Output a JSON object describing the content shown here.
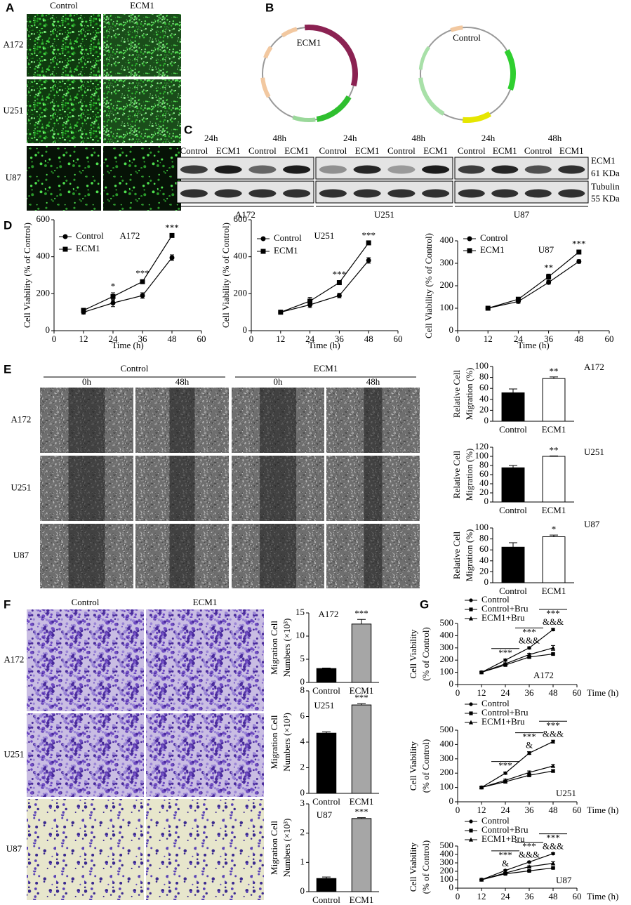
{
  "panel_a": {
    "label": "A",
    "columns": [
      "Control",
      "ECM1"
    ],
    "rows": [
      "A172",
      "U251",
      "U87"
    ]
  },
  "panel_b": {
    "label": "B",
    "plasmids": [
      "ECM1",
      "Control"
    ]
  },
  "panel_c": {
    "label": "C",
    "blots": [
      {
        "cell_line": "A172",
        "times": [
          {
            "time": "24h",
            "lanes": [
              "Control",
              "ECM1"
            ]
          },
          {
            "time": "48h",
            "lanes": [
              "Control",
              "ECM1"
            ]
          }
        ]
      },
      {
        "cell_line": "U251",
        "times": [
          {
            "time": "24h",
            "lanes": [
              "Control",
              "ECM1"
            ]
          },
          {
            "time": "48h",
            "lanes": [
              "Control",
              "ECM1"
            ]
          }
        ]
      },
      {
        "cell_line": "U87",
        "times": [
          {
            "time": "24h",
            "lanes": [
              "Control",
              "ECM1"
            ]
          },
          {
            "time": "48h",
            "lanes": [
              "Control",
              "ECM1"
            ]
          }
        ]
      }
    ],
    "proteins": [
      {
        "name": "ECM1",
        "size": "61 KDa"
      },
      {
        "name": "Tubulin",
        "size": "55 KDa"
      }
    ]
  },
  "panel_d": {
    "label": "D"
  },
  "panel_e": {
    "label": "E",
    "groups": [
      {
        "name": "Control",
        "times": [
          "0h",
          "48h"
        ]
      },
      {
        "name": "ECM1",
        "times": [
          "0h",
          "48h"
        ]
      }
    ],
    "rows": [
      "A172",
      "U251",
      "U87"
    ]
  },
  "panel_f": {
    "label": "F",
    "columns": [
      "Control",
      "ECM1"
    ],
    "rows": [
      "A172",
      "U251",
      "U87"
    ]
  },
  "panel_g": {
    "label": "G"
  },
  "chart_data": [
    {
      "type": "line",
      "title": "A172",
      "xlabel": "Time (h)",
      "ylabel": [
        "Cell Viability (% of Control)"
      ],
      "x": [
        12,
        24,
        36,
        48
      ],
      "xlim": [
        0,
        60
      ],
      "xticks": [
        0,
        12,
        24,
        36,
        48,
        60
      ],
      "ylim": [
        0,
        600
      ],
      "yticks": [
        0,
        200,
        400,
        600
      ],
      "series": [
        {
          "name": "Control",
          "color": "#000000",
          "marker": "circle",
          "values": [
            100,
            150,
            190,
            395
          ],
          "errors": [
            10,
            20,
            15,
            15
          ]
        },
        {
          "name": "ECM1",
          "color": "#000000",
          "marker": "square",
          "values": [
            110,
            185,
            265,
            515
          ],
          "errors": [
            8,
            20,
            10,
            8
          ]
        }
      ],
      "annotations": [
        null,
        [
          "*"
        ],
        [
          "***"
        ],
        [
          "***"
        ]
      ]
    },
    {
      "type": "line",
      "title": "U251",
      "xlabel": "Time (h)",
      "ylabel": [
        "Cell Viability (% of Control)"
      ],
      "x": [
        12,
        24,
        36,
        48
      ],
      "xlim": [
        0,
        60
      ],
      "xticks": [
        0,
        12,
        24,
        36,
        48,
        60
      ],
      "ylim": [
        0,
        600
      ],
      "yticks": [
        0,
        200,
        400,
        600
      ],
      "series": [
        {
          "name": "Control",
          "color": "#000000",
          "marker": "circle",
          "values": [
            100,
            140,
            190,
            380
          ],
          "errors": [
            8,
            15,
            12,
            15
          ]
        },
        {
          "name": "ECM1",
          "color": "#000000",
          "marker": "square",
          "values": [
            100,
            160,
            260,
            475
          ],
          "errors": [
            8,
            20,
            10,
            6
          ]
        }
      ],
      "annotations": [
        null,
        null,
        [
          "***"
        ],
        [
          "***"
        ]
      ]
    },
    {
      "type": "line",
      "title": "U87",
      "xlabel": "Time (h)",
      "ylabel": [
        "Cell Viability (% of Control)"
      ],
      "x": [
        12,
        24,
        36,
        48
      ],
      "xlim": [
        0,
        60
      ],
      "xticks": [
        0,
        12,
        24,
        36,
        48,
        60
      ],
      "ylim": [
        0,
        400
      ],
      "yticks": [
        0,
        100,
        200,
        300,
        400
      ],
      "series": [
        {
          "name": "Control",
          "color": "#000000",
          "marker": "circle",
          "values": [
            100,
            130,
            215,
            308
          ],
          "errors": [
            5,
            8,
            8,
            8
          ]
        },
        {
          "name": "ECM1",
          "color": "#000000",
          "marker": "square",
          "values": [
            100,
            140,
            240,
            350
          ],
          "errors": [
            5,
            8,
            12,
            8
          ]
        }
      ],
      "annotations": [
        null,
        null,
        [
          "**"
        ],
        [
          "***"
        ]
      ]
    },
    {
      "type": "bar",
      "title": "A172",
      "ylabel": [
        "Relative Cell",
        "Migration (%)"
      ],
      "categories": [
        "Control",
        "ECM1"
      ],
      "values": [
        52,
        78
      ],
      "errors": [
        7,
        3
      ],
      "colors": [
        "#000000",
        "#ffffff"
      ],
      "ylim": [
        0,
        100
      ],
      "yticks": [
        0,
        20,
        40,
        60,
        80,
        100
      ],
      "annotations": [
        null,
        [
          "**"
        ]
      ]
    },
    {
      "type": "bar",
      "title": "U251",
      "ylabel": [
        "Relative Cell",
        "Migration (%)"
      ],
      "categories": [
        "Control",
        "ECM1"
      ],
      "values": [
        75,
        100
      ],
      "errors": [
        5,
        1
      ],
      "colors": [
        "#000000",
        "#ffffff"
      ],
      "ylim": [
        0,
        120
      ],
      "yticks": [
        0,
        20,
        40,
        60,
        80,
        100,
        120
      ],
      "annotations": [
        null,
        [
          "**"
        ]
      ]
    },
    {
      "type": "bar",
      "title": "U87",
      "ylabel": [
        "Relative Cell",
        "Migration (%)"
      ],
      "categories": [
        "Control",
        "ECM1"
      ],
      "values": [
        65,
        84
      ],
      "errors": [
        8,
        3
      ],
      "colors": [
        "#000000",
        "#ffffff"
      ],
      "ylim": [
        0,
        100
      ],
      "yticks": [
        0,
        20,
        40,
        60,
        80,
        100
      ],
      "annotations": [
        null,
        [
          "*"
        ]
      ]
    },
    {
      "type": "bar",
      "title": "A172",
      "ylabel": [
        "Migration Cell",
        "Numbers (×10³)"
      ],
      "categories": [
        "Control",
        "ECM1"
      ],
      "values": [
        3.0,
        12.6
      ],
      "errors": [
        0.1,
        1.0
      ],
      "colors": [
        "#000000",
        "#a6a6a6"
      ],
      "ylim": [
        0,
        15
      ],
      "yticks": [
        0,
        5,
        10,
        15
      ],
      "annotations": [
        null,
        [
          "***"
        ]
      ]
    },
    {
      "type": "bar",
      "title": "U251",
      "ylabel": [
        "Migration Cell",
        "Numbers (×10³)"
      ],
      "categories": [
        "Control",
        "ECM1"
      ],
      "values": [
        4.7,
        6.9
      ],
      "errors": [
        0.1,
        0.1
      ],
      "colors": [
        "#000000",
        "#a6a6a6"
      ],
      "ylim": [
        0,
        8
      ],
      "yticks": [
        0,
        2,
        4,
        6,
        8
      ],
      "annotations": [
        null,
        [
          "***"
        ]
      ]
    },
    {
      "type": "bar",
      "title": "U87",
      "ylabel": [
        "Migration Cell",
        "Numbers (×10³)"
      ],
      "categories": [
        "Control",
        "ECM1"
      ],
      "values": [
        0.45,
        2.5
      ],
      "errors": [
        0.05,
        0.03
      ],
      "colors": [
        "#000000",
        "#a6a6a6"
      ],
      "ylim": [
        0,
        3
      ],
      "yticks": [
        0,
        1,
        2,
        3
      ],
      "annotations": [
        null,
        [
          "***"
        ]
      ]
    },
    {
      "type": "line",
      "title": "A172",
      "xlabel": "Time (h)",
      "ylabel": [
        "Cell Viability",
        "(% of Control)"
      ],
      "x": [
        12,
        24,
        36,
        48
      ],
      "xlim": [
        0,
        60
      ],
      "xticks": [
        0,
        12,
        24,
        36,
        48,
        60
      ],
      "ylim": [
        0,
        500
      ],
      "yticks": [
        0,
        100,
        200,
        300,
        400,
        500
      ],
      "series": [
        {
          "name": "Control",
          "color": "#000000",
          "marker": "circle",
          "values": [
            100,
            200,
            300,
            450
          ],
          "errors": [
            5,
            8,
            8,
            10
          ]
        },
        {
          "name": "Control+Bru",
          "color": "#000000",
          "marker": "square",
          "values": [
            100,
            160,
            225,
            250
          ],
          "errors": [
            5,
            8,
            8,
            8
          ]
        },
        {
          "name": "ECM1+Bru",
          "color": "#000000",
          "marker": "triangle",
          "values": [
            100,
            170,
            245,
            300
          ],
          "errors": [
            5,
            8,
            10,
            20
          ]
        }
      ],
      "annotations": [
        null,
        [
          "***"
        ],
        [
          "***",
          "&&&"
        ],
        [
          "***",
          "&&&"
        ]
      ]
    },
    {
      "type": "line",
      "title": "U251",
      "xlabel": "Time (h)",
      "ylabel": [
        "Cell Viability",
        "(% of Control)"
      ],
      "x": [
        12,
        24,
        36,
        48
      ],
      "xlim": [
        0,
        60
      ],
      "xticks": [
        0,
        12,
        24,
        36,
        48,
        60
      ],
      "ylim": [
        0,
        500
      ],
      "yticks": [
        0,
        100,
        200,
        300,
        400,
        500
      ],
      "series": [
        {
          "name": "Control",
          "color": "#000000",
          "marker": "circle",
          "values": [
            100,
            200,
            340,
            420
          ],
          "errors": [
            5,
            8,
            10,
            10
          ]
        },
        {
          "name": "Control+Bru",
          "color": "#000000",
          "marker": "square",
          "values": [
            100,
            140,
            185,
            215
          ],
          "errors": [
            5,
            8,
            8,
            8
          ]
        },
        {
          "name": "ECM1+Bru",
          "color": "#000000",
          "marker": "triangle",
          "values": [
            100,
            150,
            205,
            250
          ],
          "errors": [
            5,
            8,
            10,
            10
          ]
        }
      ],
      "annotations": [
        null,
        [
          "***"
        ],
        [
          "***",
          "&"
        ],
        [
          "***",
          "&&&"
        ]
      ]
    },
    {
      "type": "line",
      "title": "U87",
      "xlabel": "Time (h)",
      "ylabel": [
        "Cell Viability",
        "(% of Control)"
      ],
      "x": [
        12,
        24,
        36,
        48
      ],
      "xlim": [
        0,
        60
      ],
      "xticks": [
        0,
        12,
        24,
        36,
        48,
        60
      ],
      "ylim": [
        0,
        500
      ],
      "yticks": [
        0,
        100,
        200,
        300,
        400,
        500
      ],
      "series": [
        {
          "name": "Control",
          "color": "#000000",
          "marker": "circle",
          "values": [
            100,
            210,
            310,
            410
          ],
          "errors": [
            5,
            8,
            10,
            10
          ]
        },
        {
          "name": "Control+Bru",
          "color": "#000000",
          "marker": "square",
          "values": [
            100,
            170,
            205,
            240
          ],
          "errors": [
            5,
            8,
            8,
            10
          ]
        },
        {
          "name": "ECM1+Bru",
          "color": "#000000",
          "marker": "triangle",
          "values": [
            100,
            180,
            255,
            295
          ],
          "errors": [
            5,
            8,
            10,
            20
          ]
        }
      ],
      "annotations": [
        null,
        [
          "***",
          "&"
        ],
        [
          "***",
          "&&&"
        ],
        [
          "***",
          "&&&"
        ]
      ]
    }
  ]
}
